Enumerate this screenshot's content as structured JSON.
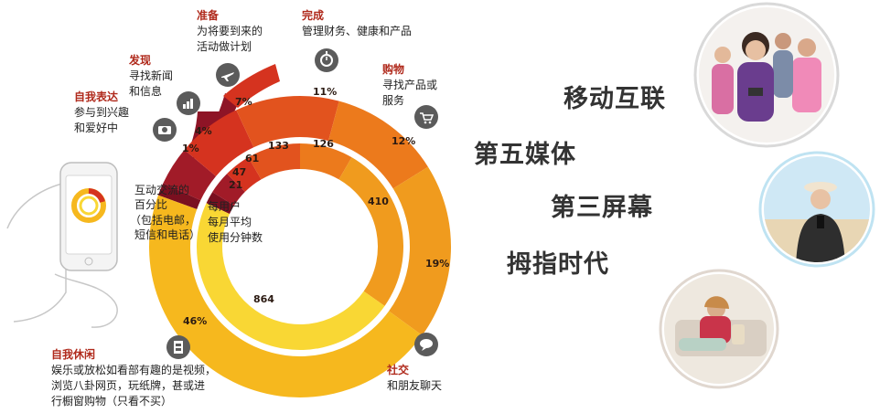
{
  "categories": {
    "self_expression": {
      "title": "自我表达",
      "desc": [
        "参与到兴趣",
        "和爱好中"
      ],
      "pct": "1%",
      "minutes": "21"
    },
    "discover": {
      "title": "发现",
      "desc": [
        "寻找新闻",
        "和信息"
      ],
      "pct": "4%",
      "minutes": "47"
    },
    "prepare": {
      "title": "准备",
      "desc": [
        "为将要到来的",
        "活动做计划"
      ],
      "pct": "7%",
      "minutes": "61"
    },
    "accomplish": {
      "title": "完成",
      "desc": [
        "管理财务、健康和产品"
      ],
      "pct": "11%",
      "minutes": "133"
    },
    "shop": {
      "title": "购物",
      "desc": [
        "寻找产品或",
        "服务"
      ],
      "pct": "12%",
      "minutes": "126"
    },
    "social": {
      "title": "社交",
      "desc": [
        "和朋友聊天"
      ],
      "pct": "19%",
      "minutes": "410"
    },
    "me_time": {
      "title": "自我休闲",
      "desc": [
        "娱乐或放松如看部有趣的是视频，",
        "浏览八卦网页，玩纸牌，甚或进",
        "行橱窗购物（只看不买）"
      ],
      "pct": "46%",
      "minutes": "864"
    }
  },
  "left_caption": [
    "互动交流的",
    "百分比",
    "（包括电邮，",
    "短信和电话）"
  ],
  "center_caption": [
    "每用户",
    "每月平均",
    "使用分钟数"
  ],
  "headlines": [
    "移动互联",
    "第五媒体",
    "第三屏幕",
    "拇指时代"
  ],
  "colors": {
    "dark_maroon": "#7a1020",
    "red": "#d5331f",
    "red_orange": "#e2531e",
    "orange": "#ec7a1c",
    "amber": "#f09b1e",
    "yellow_orange": "#f6b81e",
    "yellow": "#f9d734"
  },
  "icons": [
    "camera-icon",
    "chart-icon",
    "plane-icon",
    "stopwatch-icon",
    "cart-icon",
    "chat-icon",
    "film-icon",
    "phone-icon"
  ]
}
